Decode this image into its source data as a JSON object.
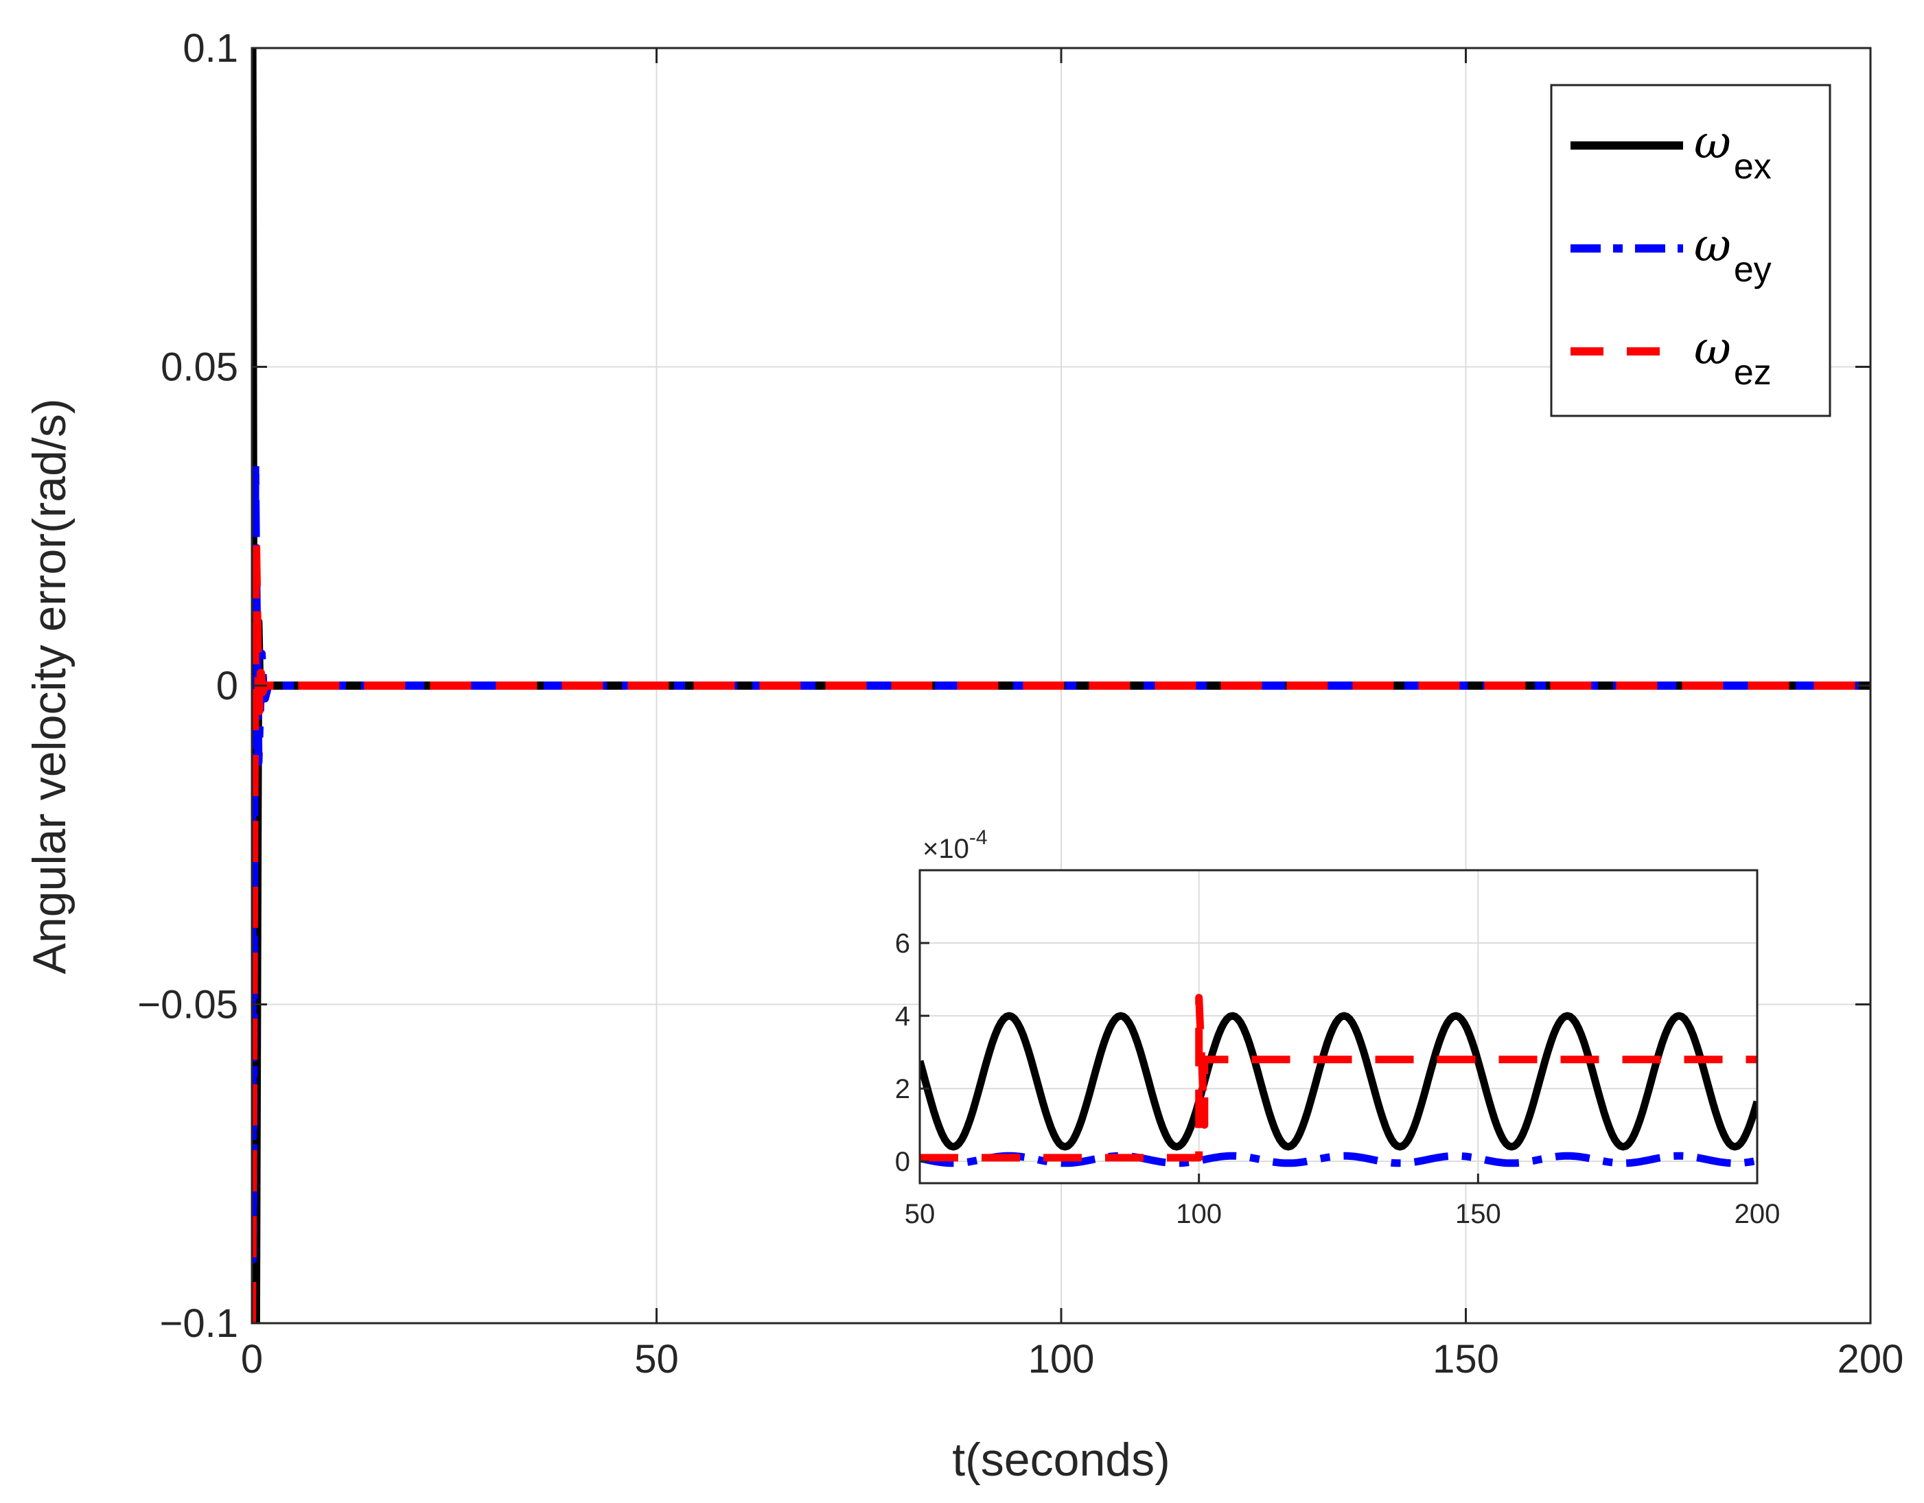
{
  "chart_data": [
    {
      "type": "line",
      "xlabel": "t(seconds)",
      "ylabel": "Angular velocity error(rad/s)",
      "xlim": [
        0,
        200
      ],
      "ylim": [
        -0.1,
        0.1
      ],
      "xticks": [
        0,
        50,
        100,
        150,
        200
      ],
      "xtick_labels": [
        "0",
        "50",
        "100",
        "150",
        "200"
      ],
      "yticks": [
        0.1,
        0.05,
        0,
        -0.05,
        -0.1
      ],
      "ytick_labels": [
        "0.1",
        "0.05",
        "0",
        "−0.05",
        "−0.1"
      ],
      "grid": true,
      "legend_position": "top-right",
      "series": [
        {
          "name": "ωex",
          "symbol": "ω",
          "sub": "ex",
          "color": "#000000",
          "style": "solid",
          "x": [
            0,
            0.05,
            0.1,
            0.15,
            0.2,
            0.3,
            0.4,
            0.5,
            0.6,
            0.7,
            0.8,
            0.9,
            1.0,
            1.1,
            1.2,
            1.4,
            1.7,
            2.0,
            3,
            5,
            200
          ],
          "y": [
            0.1,
            0.1,
            0.07,
            0.03,
            -0.01,
            -0.04,
            -0.07,
            -0.1,
            -0.06,
            -0.02,
            0.01,
            0.004,
            -0.003,
            0.001,
            0.0,
            0.0,
            0.0,
            0.0,
            0.0,
            0.0,
            0.0
          ]
        },
        {
          "name": "ωey",
          "symbol": "ω",
          "sub": "ey",
          "color": "#0000ff",
          "style": "dashdot",
          "x": [
            0,
            0.1,
            0.2,
            0.3,
            0.4,
            0.5,
            0.6,
            0.8,
            1.0,
            1.2,
            1.4,
            1.6,
            2.0,
            3,
            5,
            200
          ],
          "y": [
            0.0,
            -0.09,
            -0.06,
            -0.01,
            0.035,
            0.02,
            0.01,
            -0.012,
            -0.004,
            0.005,
            0.0,
            -0.002,
            0.0,
            0.0,
            0.0,
            0.0
          ]
        },
        {
          "name": "ωez",
          "symbol": "ω",
          "sub": "ez",
          "color": "#ff0000",
          "style": "dashed",
          "x": [
            0,
            0.1,
            0.2,
            0.3,
            0.4,
            0.5,
            0.6,
            0.7,
            0.9,
            1.1,
            1.3,
            1.6,
            2.0,
            3,
            5,
            200
          ],
          "y": [
            -0.1,
            -0.08,
            -0.05,
            -0.02,
            0.005,
            0.023,
            0.015,
            0.006,
            -0.004,
            0.002,
            -0.001,
            0.0,
            0.0,
            0.0,
            0.0,
            0.0
          ]
        }
      ]
    },
    {
      "type": "line",
      "role": "inset",
      "xlim": [
        50,
        200
      ],
      "ylim": [
        -0.6,
        8
      ],
      "xticks": [
        50,
        100,
        150,
        200
      ],
      "xtick_labels": [
        "50",
        "100",
        "150",
        "200"
      ],
      "yticks": [
        0,
        2,
        4,
        6
      ],
      "ytick_labels": [
        "0",
        "2",
        "4",
        "6"
      ],
      "exponent_label": "×10",
      "exponent_power": "-4",
      "grid": true,
      "series": [
        {
          "name": "ωex",
          "color": "#000000",
          "style": "solid",
          "function": "sine",
          "mean": 2.2,
          "amplitude": 1.8,
          "period": 20,
          "phase_x_of_peak": 66
        },
        {
          "name": "ωey",
          "color": "#0000ff",
          "style": "dashdot",
          "function": "sine",
          "mean": 0.05,
          "amplitude": 0.1,
          "period": 20,
          "phase_x_of_peak": 66
        },
        {
          "name": "ωez",
          "color": "#ff0000",
          "style": "dashed",
          "x": [
            50,
            100,
            100,
            101,
            101,
            200
          ],
          "y": [
            0.1,
            0.1,
            4.5,
            1.0,
            2.8,
            2.8
          ]
        }
      ]
    }
  ]
}
